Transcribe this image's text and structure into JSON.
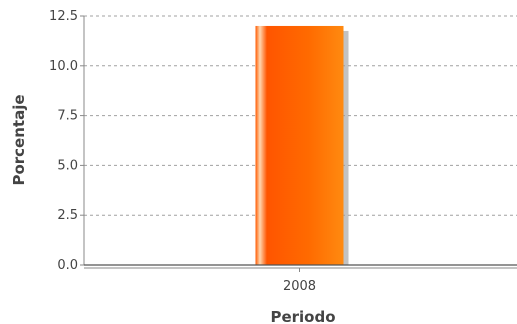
{
  "chart_data": {
    "type": "bar",
    "categories": [
      "2008"
    ],
    "series": [
      {
        "values": [
          12.0
        ]
      }
    ],
    "xlabel": "Periodo",
    "ylabel": "Porcentaje",
    "ylim": [
      0,
      12.5
    ],
    "yticks": [
      0,
      2.5,
      5,
      7.5,
      10,
      12.5
    ],
    "ytick_labels": [
      "0.0",
      "2.5",
      "5.0",
      "7.5",
      "10.0",
      "12.5"
    ],
    "grid": true,
    "bar_color": "#ff6a00"
  }
}
